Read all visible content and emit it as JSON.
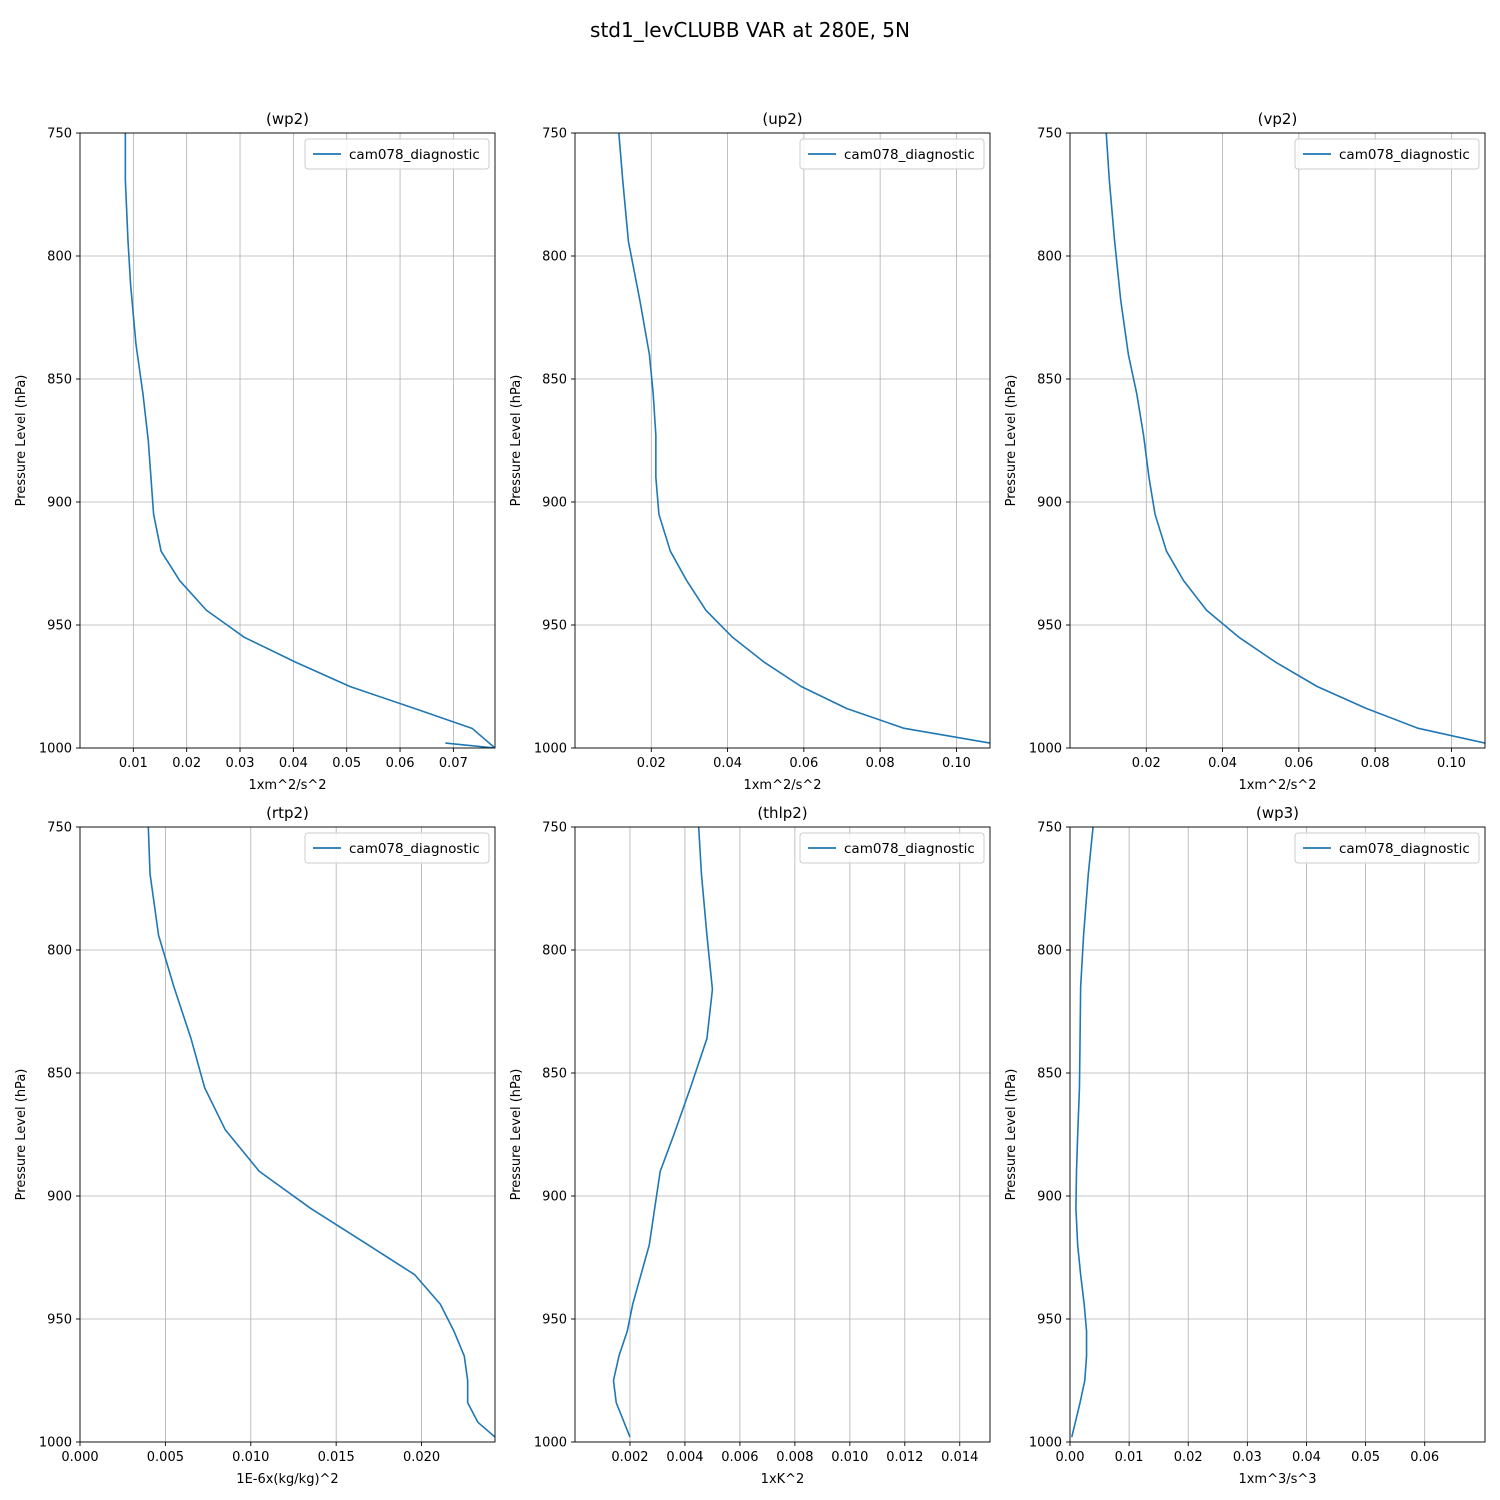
{
  "figure": {
    "title": "std1_levCLUBB VAR at 280E, 5N"
  },
  "colors": {
    "line": "#1f77b4",
    "grid": "#b0b0b0",
    "legend_border": "#cccccc"
  },
  "chart_data": [
    {
      "type": "line",
      "title": "(wp2)",
      "xlabel": "1xm^2/s^2",
      "ylabel": "Pressure Level (hPa)",
      "xlim": [
        0.0,
        0.0778
      ],
      "ylim": [
        750,
        1000
      ],
      "y_inverted": true,
      "grid": true,
      "legend_loc": "upper right",
      "xticks": [
        0.01,
        0.02,
        0.03,
        0.04,
        0.05,
        0.06,
        0.07
      ],
      "xtick_labels": [
        "0.01",
        "0.02",
        "0.03",
        "0.04",
        "0.05",
        "0.06",
        "0.07"
      ],
      "yticks": [
        750,
        800,
        850,
        900,
        950,
        1000
      ],
      "ytick_labels": [
        "750",
        "800",
        "850",
        "900",
        "950",
        "1000"
      ],
      "series": [
        {
          "name": "cam078_diagnostic",
          "x": [
            0.0085,
            0.0085,
            0.009,
            0.0095,
            0.0105,
            0.0118,
            0.0128,
            0.0133,
            0.0138,
            0.0152,
            0.0187,
            0.0237,
            0.0308,
            0.0403,
            0.0506,
            0.0628,
            0.0735,
            0.0778,
            0.0685
          ],
          "y": [
            750,
            769,
            794,
            812,
            836,
            856,
            875,
            890,
            905,
            920,
            932,
            944,
            955,
            965,
            975,
            984,
            992,
            1000,
            998
          ]
        }
      ]
    },
    {
      "type": "line",
      "title": "(up2)",
      "xlabel": "1xm^2/s^2",
      "ylabel": "Pressure Level (hPa)",
      "xlim": [
        0.0,
        0.1088
      ],
      "ylim": [
        750,
        1000
      ],
      "y_inverted": true,
      "grid": true,
      "legend_loc": "upper right",
      "xticks": [
        0.02,
        0.04,
        0.06,
        0.08,
        0.1
      ],
      "xtick_labels": [
        "0.02",
        "0.04",
        "0.06",
        "0.08",
        "0.10"
      ],
      "yticks": [
        750,
        800,
        850,
        900,
        950,
        1000
      ],
      "ytick_labels": [
        "750",
        "800",
        "850",
        "900",
        "950",
        "1000"
      ],
      "series": [
        {
          "name": "cam078_diagnostic",
          "x": [
            0.0115,
            0.0125,
            0.014,
            0.017,
            0.0195,
            0.0205,
            0.0212,
            0.0212,
            0.022,
            0.025,
            0.0293,
            0.0343,
            0.0413,
            0.0495,
            0.0593,
            0.0713,
            0.0863,
            0.1088
          ],
          "y": [
            750,
            769,
            794,
            818,
            840,
            856,
            873,
            890,
            905,
            920,
            932,
            944,
            955,
            965,
            975,
            984,
            992,
            998
          ]
        }
      ]
    },
    {
      "type": "line",
      "title": "(vp2)",
      "xlabel": "1xm^2/s^2",
      "ylabel": "Pressure Level (hPa)",
      "xlim": [
        0.0,
        0.1088
      ],
      "ylim": [
        750,
        1000
      ],
      "y_inverted": true,
      "grid": true,
      "legend_loc": "upper right",
      "xticks": [
        0.02,
        0.04,
        0.06,
        0.08,
        0.1
      ],
      "xtick_labels": [
        "0.02",
        "0.04",
        "0.06",
        "0.08",
        "0.10"
      ],
      "yticks": [
        750,
        800,
        850,
        900,
        950,
        1000
      ],
      "ytick_labels": [
        "750",
        "800",
        "850",
        "900",
        "950",
        "1000"
      ],
      "series": [
        {
          "name": "cam078_diagnostic",
          "x": [
            0.0095,
            0.0103,
            0.0117,
            0.0133,
            0.0153,
            0.0175,
            0.0193,
            0.0207,
            0.0223,
            0.0253,
            0.0298,
            0.0358,
            0.0443,
            0.0538,
            0.0648,
            0.0778,
            0.0913,
            0.1088
          ],
          "y": [
            750,
            769,
            794,
            818,
            840,
            856,
            873,
            890,
            905,
            920,
            932,
            944,
            955,
            965,
            975,
            984,
            992,
            998
          ]
        }
      ]
    },
    {
      "type": "line",
      "title": "(rtp2)",
      "xlabel": "1E-6x(kg/kg)^2",
      "ylabel": "Pressure Level (hPa)",
      "xlim": [
        0.0,
        0.0243
      ],
      "ylim": [
        750,
        1000
      ],
      "y_inverted": true,
      "grid": true,
      "legend_loc": "upper right",
      "xticks": [
        0.0,
        0.005,
        0.01,
        0.015,
        0.02
      ],
      "xtick_labels": [
        "0.000",
        "0.005",
        "0.010",
        "0.015",
        "0.020"
      ],
      "yticks": [
        750,
        800,
        850,
        900,
        950,
        1000
      ],
      "ytick_labels": [
        "750",
        "800",
        "850",
        "900",
        "950",
        "1000"
      ],
      "series": [
        {
          "name": "cam078_diagnostic",
          "x": [
            0.004,
            0.0041,
            0.0046,
            0.0055,
            0.0065,
            0.0073,
            0.0085,
            0.0105,
            0.0135,
            0.0169,
            0.0196,
            0.0211,
            0.0219,
            0.0225,
            0.0227,
            0.0227,
            0.0233,
            0.0243
          ],
          "y": [
            750,
            769,
            794,
            815,
            836,
            856,
            873,
            890,
            905,
            920,
            932,
            944,
            955,
            965,
            975,
            984,
            992,
            998
          ]
        }
      ]
    },
    {
      "type": "line",
      "title": "(thlp2)",
      "xlabel": "1xK^2",
      "ylabel": "Pressure Level (hPa)",
      "xlim": [
        0.0,
        0.0151
      ],
      "ylim": [
        750,
        1000
      ],
      "y_inverted": true,
      "grid": true,
      "legend_loc": "upper right",
      "xticks": [
        0.002,
        0.004,
        0.006,
        0.008,
        0.01,
        0.012,
        0.014
      ],
      "xtick_labels": [
        "0.002",
        "0.004",
        "0.006",
        "0.008",
        "0.010",
        "0.012",
        "0.014"
      ],
      "yticks": [
        750,
        800,
        850,
        900,
        950,
        1000
      ],
      "ytick_labels": [
        "750",
        "800",
        "850",
        "900",
        "950",
        "1000"
      ],
      "series": [
        {
          "name": "cam078_diagnostic",
          "x": [
            0.0045,
            0.0046,
            0.0048,
            0.005,
            0.0048,
            0.0042,
            0.0036,
            0.0031,
            0.0029,
            0.0027,
            0.0024,
            0.0021,
            0.0019,
            0.0016,
            0.0014,
            0.0015,
            0.002
          ],
          "y": [
            750,
            769,
            794,
            816,
            836,
            856,
            875,
            890,
            905,
            920,
            932,
            944,
            955,
            965,
            975,
            984,
            998
          ]
        }
      ]
    },
    {
      "type": "line",
      "title": "(wp3)",
      "xlabel": "1xm^3/s^3",
      "ylabel": "Pressure Level (hPa)",
      "xlim": [
        0.0,
        0.0702
      ],
      "ylim": [
        750,
        1000
      ],
      "y_inverted": true,
      "grid": true,
      "legend_loc": "upper right",
      "xticks": [
        0.0,
        0.01,
        0.02,
        0.03,
        0.04,
        0.05,
        0.06
      ],
      "xtick_labels": [
        "0.00",
        "0.01",
        "0.02",
        "0.03",
        "0.04",
        "0.05",
        "0.06"
      ],
      "yticks": [
        750,
        800,
        850,
        900,
        950,
        1000
      ],
      "ytick_labels": [
        "750",
        "800",
        "850",
        "900",
        "950",
        "1000"
      ],
      "series": [
        {
          "name": "cam078_diagnostic",
          "x": [
            0.0039,
            0.0031,
            0.0023,
            0.0018,
            0.0017,
            0.0016,
            0.0013,
            0.0011,
            0.001,
            0.0013,
            0.0018,
            0.0024,
            0.0028,
            0.0028,
            0.0025,
            0.0017,
            0.0003
          ],
          "y": [
            750,
            769,
            794,
            815,
            836,
            856,
            875,
            890,
            905,
            920,
            932,
            944,
            955,
            965,
            975,
            984,
            998
          ]
        }
      ]
    }
  ]
}
